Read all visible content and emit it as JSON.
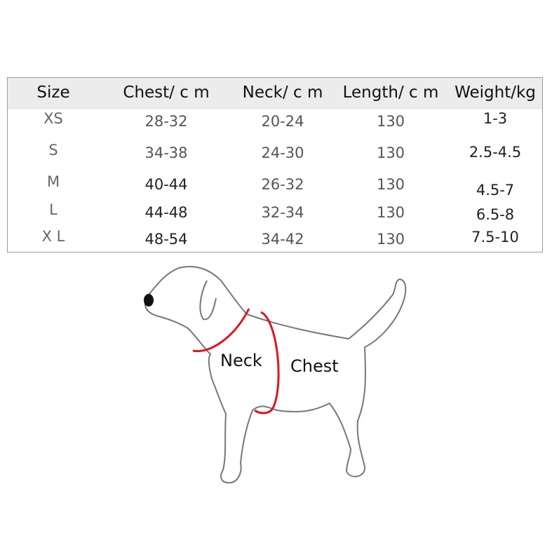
{
  "table": {
    "headers": [
      "Size",
      "Chest/ c m",
      "Neck/ c m",
      "Length/ c m",
      "Weight/kg"
    ],
    "rows": [
      [
        "XS",
        "28-32",
        "20-24",
        "130",
        "1-3"
      ],
      [
        "S",
        "34-38",
        "24-30",
        "130",
        "2.5-4.5"
      ],
      [
        "M",
        "40-44",
        "26-32",
        "130",
        "4.5-7"
      ],
      [
        "L",
        "44-48",
        "32-34",
        "130",
        "6.5-8"
      ],
      [
        "X L",
        "48-54",
        "34-42",
        "130",
        "7.5-10"
      ]
    ]
  },
  "diagram": {
    "neck_label": "Neck",
    "chest_label": "Chest",
    "measure_color": "#e0141e",
    "outline_color": "#777777"
  }
}
